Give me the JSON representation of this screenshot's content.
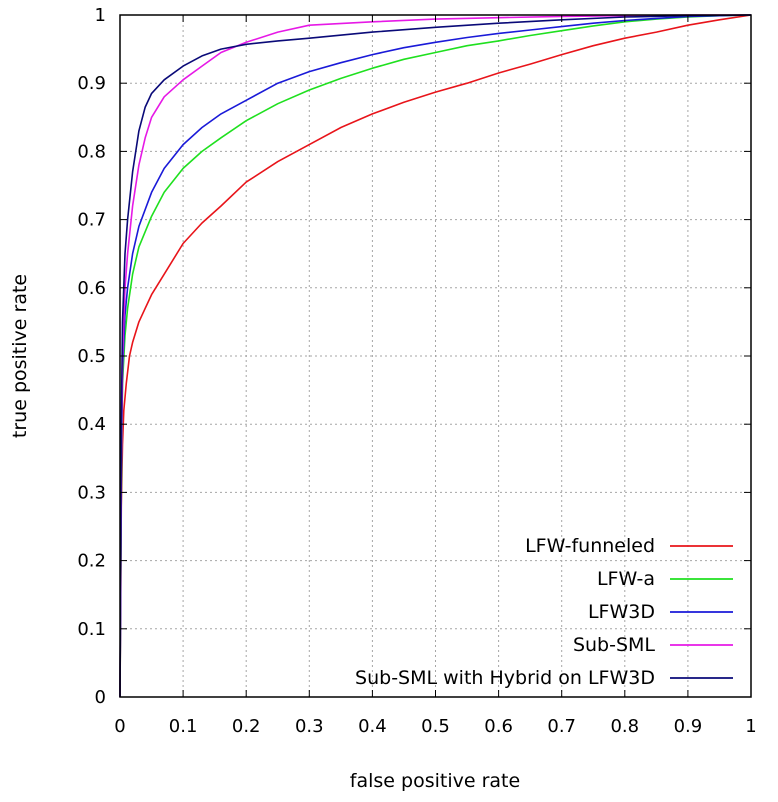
{
  "chart_data": {
    "type": "line",
    "title": "",
    "xlabel": "false positive rate",
    "ylabel": "true positive rate",
    "xlim": [
      0,
      1
    ],
    "ylim": [
      0,
      1
    ],
    "x_ticks": [
      "0",
      "0.1",
      "0.2",
      "0.3",
      "0.4",
      "0.5",
      "0.6",
      "0.7",
      "0.8",
      "0.9",
      "1"
    ],
    "y_ticks": [
      "0",
      "0.1",
      "0.2",
      "0.3",
      "0.4",
      "0.5",
      "0.6",
      "0.7",
      "0.8",
      "0.9",
      "1"
    ],
    "grid": true,
    "legend_position": "bottom-right",
    "series": [
      {
        "name": "LFW-funneled",
        "color": "#e8141a",
        "x": [
          0,
          0.002,
          0.004,
          0.006,
          0.01,
          0.015,
          0.02,
          0.03,
          0.04,
          0.05,
          0.07,
          0.1,
          0.13,
          0.16,
          0.2,
          0.25,
          0.3,
          0.35,
          0.4,
          0.45,
          0.5,
          0.55,
          0.6,
          0.65,
          0.7,
          0.75,
          0.8,
          0.85,
          0.9,
          0.95,
          1.0
        ],
        "y": [
          0,
          0.28,
          0.37,
          0.42,
          0.46,
          0.5,
          0.52,
          0.55,
          0.57,
          0.59,
          0.62,
          0.665,
          0.695,
          0.72,
          0.755,
          0.785,
          0.81,
          0.835,
          0.855,
          0.872,
          0.887,
          0.9,
          0.915,
          0.928,
          0.942,
          0.955,
          0.966,
          0.975,
          0.985,
          0.993,
          1.0
        ]
      },
      {
        "name": "LFW-a",
        "color": "#1fe01f",
        "x": [
          0,
          0.002,
          0.004,
          0.008,
          0.012,
          0.02,
          0.03,
          0.05,
          0.07,
          0.1,
          0.13,
          0.16,
          0.2,
          0.25,
          0.3,
          0.35,
          0.4,
          0.45,
          0.5,
          0.55,
          0.6,
          0.65,
          0.7,
          0.75,
          0.8,
          0.85,
          0.9,
          0.95,
          1.0
        ],
        "y": [
          0,
          0.3,
          0.46,
          0.53,
          0.57,
          0.62,
          0.66,
          0.705,
          0.74,
          0.775,
          0.8,
          0.82,
          0.845,
          0.87,
          0.89,
          0.907,
          0.922,
          0.935,
          0.945,
          0.955,
          0.962,
          0.97,
          0.977,
          0.984,
          0.99,
          0.994,
          0.997,
          0.999,
          1.0
        ]
      },
      {
        "name": "LFW3D",
        "color": "#1a1ad8",
        "x": [
          0,
          0.002,
          0.004,
          0.008,
          0.012,
          0.02,
          0.03,
          0.05,
          0.07,
          0.1,
          0.13,
          0.16,
          0.2,
          0.25,
          0.3,
          0.35,
          0.4,
          0.45,
          0.5,
          0.55,
          0.6,
          0.65,
          0.7,
          0.75,
          0.8,
          0.85,
          0.9,
          0.95,
          1.0
        ],
        "y": [
          0,
          0.33,
          0.48,
          0.56,
          0.6,
          0.65,
          0.69,
          0.74,
          0.775,
          0.81,
          0.835,
          0.855,
          0.875,
          0.9,
          0.917,
          0.93,
          0.942,
          0.952,
          0.96,
          0.967,
          0.973,
          0.978,
          0.983,
          0.988,
          0.992,
          0.995,
          0.998,
          0.999,
          1.0
        ]
      },
      {
        "name": "Sub-SML",
        "color": "#e619e6",
        "x": [
          0,
          0.002,
          0.004,
          0.008,
          0.012,
          0.02,
          0.03,
          0.04,
          0.05,
          0.07,
          0.1,
          0.13,
          0.16,
          0.2,
          0.25,
          0.3,
          0.4,
          0.5,
          0.6,
          0.7,
          0.8,
          0.9,
          1.0
        ],
        "y": [
          0,
          0.35,
          0.5,
          0.6,
          0.65,
          0.72,
          0.78,
          0.82,
          0.85,
          0.88,
          0.905,
          0.925,
          0.945,
          0.96,
          0.975,
          0.985,
          0.99,
          0.994,
          0.996,
          0.998,
          0.999,
          1.0,
          1.0
        ]
      },
      {
        "name": "Sub-SML with Hybrid on LFW3D",
        "color": "#0a0a78",
        "x": [
          0,
          0.002,
          0.004,
          0.008,
          0.012,
          0.02,
          0.03,
          0.04,
          0.05,
          0.07,
          0.1,
          0.13,
          0.16,
          0.2,
          0.25,
          0.3,
          0.4,
          0.5,
          0.6,
          0.7,
          0.8,
          0.9,
          1.0
        ],
        "y": [
          0,
          0.4,
          0.55,
          0.65,
          0.7,
          0.77,
          0.83,
          0.865,
          0.885,
          0.905,
          0.925,
          0.94,
          0.95,
          0.957,
          0.962,
          0.966,
          0.975,
          0.982,
          0.988,
          0.993,
          0.997,
          0.999,
          1.0
        ]
      }
    ]
  }
}
